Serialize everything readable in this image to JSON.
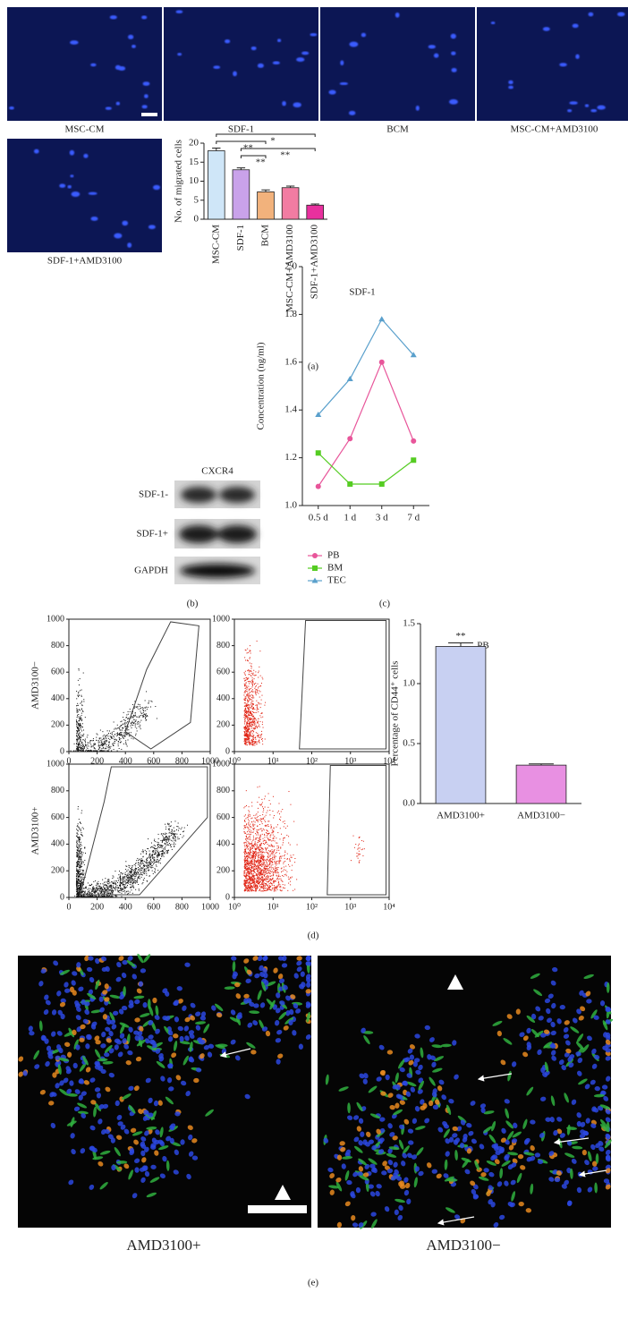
{
  "panel_labels": [
    "(a)",
    "(b)",
    "(c)",
    "(d)",
    "(e)"
  ],
  "micrographs": [
    "MSC-CM",
    "SDF-1",
    "BCM",
    "MSC-CM+AMD3100",
    "SDF-1+AMD3100"
  ],
  "western_blot": {
    "title": "CXCR4",
    "rows": [
      "SDF-1-",
      "SDF-1+",
      "GAPDH"
    ]
  },
  "flow_cytometry": {
    "row_labels": [
      "AMD3100−",
      "AMD3100+"
    ],
    "linear_lim": [
      0,
      1000
    ],
    "linear_ticks": [
      0,
      200,
      400,
      600,
      800,
      1000
    ],
    "log_lim": [
      1,
      10000
    ],
    "log_ticks": [
      {
        "value": 1,
        "label": "10⁰"
      },
      {
        "value": 10,
        "label": "10¹"
      },
      {
        "value": 100,
        "label": "10²"
      },
      {
        "value": 1000,
        "label": "10³"
      },
      {
        "value": 10000,
        "label": "10⁴"
      }
    ]
  },
  "immunofluorescence": [
    "AMD3100+",
    "AMD3100−"
  ],
  "chart_data": [
    {
      "type": "bar",
      "y_label": "No. of migrated cells",
      "categories": [
        "MSC-CM",
        "SDF-1",
        "BCM",
        "MSC-CM+AMD3100",
        "SDF-1+AMD3100"
      ],
      "values": [
        18,
        13,
        7.2,
        8.3,
        3.7
      ],
      "errors": [
        0.7,
        0.5,
        0.5,
        0.4,
        0.3
      ],
      "colors": [
        "#cfe6f8",
        "#c9a2ea",
        "#f2b27c",
        "#f27ca2",
        "#e8309e"
      ],
      "ylim": [
        0,
        20
      ],
      "yticks": [
        0,
        5,
        10,
        15,
        20
      ],
      "annotations": [
        "*",
        "**",
        "**",
        "**"
      ]
    },
    {
      "type": "line",
      "title": "SDF-1",
      "y_label": "Concentration (ng/ml)",
      "categories": [
        "0.5 d",
        "1 d",
        "3 d",
        "7 d"
      ],
      "series": [
        {
          "name": "PB",
          "color": "#e8559a",
          "marker": "circle",
          "values": [
            1.08,
            1.28,
            1.6,
            1.27
          ]
        },
        {
          "name": "BM",
          "color": "#55cc22",
          "marker": "square",
          "values": [
            1.22,
            1.09,
            1.09,
            1.19
          ]
        },
        {
          "name": "TEC",
          "color": "#5aa0cc",
          "marker": "triangle",
          "values": [
            1.38,
            1.53,
            1.78,
            1.63
          ]
        }
      ],
      "ylim": [
        1.0,
        2.0
      ],
      "yticks": [
        {
          "value": 1,
          "label": "1.0"
        },
        1.2,
        1.4,
        1.6,
        1.8,
        {
          "value": 2,
          "label": "2.0"
        }
      ]
    },
    {
      "type": "bar",
      "title": "PB",
      "y_label": "Percentage of CD44⁺ cells",
      "categories": [
        "AMD3100+",
        "AMD3100−"
      ],
      "values": [
        1.31,
        0.32
      ],
      "errors": [
        0.03,
        0.01
      ],
      "colors": [
        "#c8d0f2",
        "#e890e2"
      ],
      "ylim": [
        0,
        1.5
      ],
      "yticks": [
        {
          "value": 0,
          "label": "0.0"
        },
        0.5,
        {
          "value": 1,
          "label": "1.0"
        },
        1.5
      ],
      "annotations": [
        "**"
      ]
    }
  ]
}
